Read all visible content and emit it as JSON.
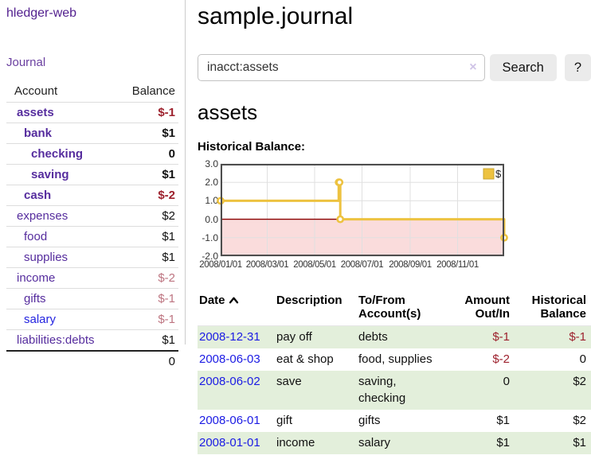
{
  "sidebar": {
    "brand": "hledger-web",
    "nav": {
      "journal": "Journal"
    },
    "accounts_table": {
      "headers": {
        "account": "Account",
        "balance": "Balance"
      },
      "rows": [
        {
          "label": "assets",
          "indent": 0,
          "bold": true,
          "balance": "$-1",
          "style": "neg",
          "link": "purple"
        },
        {
          "label": "bank",
          "indent": 1,
          "bold": true,
          "balance": "$1",
          "style": "pos",
          "link": "purple"
        },
        {
          "label": "checking",
          "indent": 2,
          "bold": true,
          "balance": "0",
          "style": "pos",
          "link": "purple"
        },
        {
          "label": "saving",
          "indent": 2,
          "bold": true,
          "balance": "$1",
          "style": "pos",
          "link": "purple"
        },
        {
          "label": "cash",
          "indent": 1,
          "bold": true,
          "balance": "$-2",
          "style": "neg",
          "link": "purple"
        },
        {
          "label": "expenses",
          "indent": 0,
          "bold": false,
          "balance": "$2",
          "style": "pos",
          "link": "purple"
        },
        {
          "label": "food",
          "indent": 1,
          "bold": false,
          "balance": "$1",
          "style": "pos",
          "link": "purple"
        },
        {
          "label": "supplies",
          "indent": 1,
          "bold": false,
          "balance": "$1",
          "style": "pos",
          "link": "purple"
        },
        {
          "label": "income",
          "indent": 0,
          "bold": false,
          "balance": "$-2",
          "style": "negdim",
          "link": "purple"
        },
        {
          "label": "gifts",
          "indent": 1,
          "bold": false,
          "balance": "$-1",
          "style": "negdim",
          "link": "purple"
        },
        {
          "label": "salary",
          "indent": 1,
          "bold": false,
          "balance": "$-1",
          "style": "negdim",
          "link": "blue"
        },
        {
          "label": "liabilities:debts",
          "indent": 0,
          "bold": false,
          "balance": "$1",
          "style": "pos",
          "link": "purple"
        }
      ],
      "total": "0"
    }
  },
  "main": {
    "title": "sample.journal",
    "search": {
      "value": "inacct:assets",
      "clear_icon": "×",
      "button": "Search",
      "help_button": "?"
    },
    "account_heading": "assets",
    "chart_label": "Historical Balance:"
  },
  "chart_data": {
    "type": "line",
    "step": true,
    "title": "Historical Balance",
    "series": [
      {
        "name": "$",
        "color": "#edc240",
        "points": [
          [
            "2008-01-01",
            1
          ],
          [
            "2008-06-01",
            2
          ],
          [
            "2008-06-02",
            2
          ],
          [
            "2008-06-03",
            0
          ],
          [
            "2008-12-31",
            -1
          ]
        ]
      }
    ],
    "ylim": [
      -2,
      3
    ],
    "y_ticks": [
      "3.0",
      "2.0",
      "1.0",
      "0.0",
      "-1.0",
      "-2.0"
    ],
    "x_ticks": [
      "2008/01/01",
      "2008/03/01",
      "2008/05/01",
      "2008/07/01",
      "2008/09/01",
      "2008/11/01"
    ],
    "grid": true,
    "legend_position": "top-right",
    "negative_region_color": "#fadcdc",
    "zero_line_color": "#8b0000",
    "grid_color": "#e0e0e0",
    "border_color": "#4d4d4d"
  },
  "register_table": {
    "headers": [
      {
        "label": "Date",
        "sort": "asc"
      },
      {
        "label": "Description"
      },
      {
        "label": "To/From Account(s)"
      },
      {
        "label": "Amount Out/In",
        "align": "right"
      },
      {
        "label": "Historical Balance",
        "align": "right"
      }
    ],
    "rows": [
      {
        "date": "2008-12-31",
        "description": "pay off",
        "accounts": "debts",
        "amount": "$-1",
        "amount_negative": true,
        "balance": "$-1",
        "balance_negative": true
      },
      {
        "date": "2008-06-03",
        "description": "eat & shop",
        "accounts": "food, supplies",
        "amount": "$-2",
        "amount_negative": true,
        "balance": "0",
        "balance_negative": false
      },
      {
        "date": "2008-06-02",
        "description": "save",
        "accounts": "saving, checking",
        "amount": "0",
        "amount_negative": false,
        "balance": "$2",
        "balance_negative": false
      },
      {
        "date": "2008-06-01",
        "description": "gift",
        "accounts": "gifts",
        "amount": "$1",
        "amount_negative": false,
        "balance": "$2",
        "balance_negative": false
      },
      {
        "date": "2008-01-01",
        "description": "income",
        "accounts": "salary",
        "amount": "$1",
        "amount_negative": false,
        "balance": "$1",
        "balance_negative": false
      }
    ]
  }
}
